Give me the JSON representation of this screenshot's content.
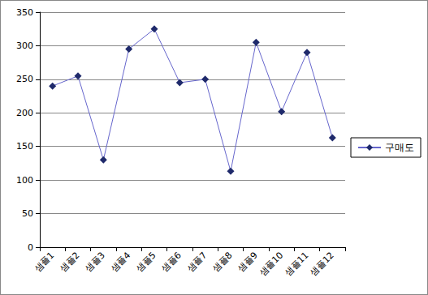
{
  "chart_data": {
    "type": "line",
    "categories": [
      "샘플1",
      "샘플2",
      "샘플3",
      "샘플4",
      "샘플5",
      "샘플6",
      "샘플7",
      "샘플8",
      "샘플9",
      "샘플10",
      "샘플11",
      "샘플12"
    ],
    "series": [
      {
        "name": "구매도",
        "color": "#6666cc",
        "marker": "diamond",
        "line_style": "solid",
        "values": [
          240,
          255,
          130,
          295,
          325,
          245,
          250,
          113,
          305,
          202,
          290,
          163
        ]
      }
    ],
    "ylim": [
      0,
      350
    ],
    "yticks": [
      0,
      50,
      100,
      150,
      200,
      250,
      300,
      350
    ],
    "grid": true,
    "legend": "right"
  }
}
